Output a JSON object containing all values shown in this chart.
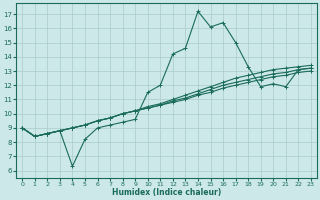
{
  "xlabel": "Humidex (Indice chaleur)",
  "bg_color": "#cce8e8",
  "grid_color": "#aacccc",
  "line_color": "#1a6b5a",
  "xlim": [
    -0.5,
    23.5
  ],
  "ylim": [
    5.5,
    17.8
  ],
  "xticks": [
    0,
    1,
    2,
    3,
    4,
    5,
    6,
    7,
    8,
    9,
    10,
    11,
    12,
    13,
    14,
    15,
    16,
    17,
    18,
    19,
    20,
    21,
    22,
    23
  ],
  "yticks": [
    6,
    7,
    8,
    9,
    10,
    11,
    12,
    13,
    14,
    15,
    16,
    17
  ],
  "lines": [
    [
      9.0,
      8.4,
      8.6,
      8.8,
      6.3,
      8.2,
      9.0,
      9.2,
      9.4,
      9.6,
      11.5,
      12.0,
      14.2,
      14.6,
      17.2,
      16.1,
      16.4,
      15.0,
      13.3,
      11.9,
      12.1,
      11.9,
      13.1,
      13.2
    ],
    [
      9.0,
      8.4,
      8.6,
      8.8,
      9.0,
      9.2,
      9.5,
      9.7,
      10.0,
      10.2,
      10.5,
      10.7,
      11.0,
      11.3,
      11.6,
      11.9,
      12.2,
      12.5,
      12.7,
      12.9,
      13.1,
      13.2,
      13.3,
      13.4
    ],
    [
      9.0,
      8.4,
      8.6,
      8.8,
      9.0,
      9.2,
      9.5,
      9.7,
      10.0,
      10.2,
      10.4,
      10.6,
      10.9,
      11.1,
      11.4,
      11.7,
      12.0,
      12.2,
      12.4,
      12.6,
      12.8,
      12.9,
      13.1,
      13.2
    ],
    [
      9.0,
      8.4,
      8.6,
      8.8,
      9.0,
      9.2,
      9.5,
      9.7,
      10.0,
      10.2,
      10.4,
      10.6,
      10.8,
      11.0,
      11.3,
      11.5,
      11.8,
      12.0,
      12.2,
      12.4,
      12.6,
      12.7,
      12.9,
      13.0
    ]
  ],
  "marker": "+",
  "markersize": 3.5,
  "linewidth": 0.8,
  "tick_labelsize": 5,
  "xlabel_fontsize": 5.5,
  "xlabel_fontweight": "bold"
}
